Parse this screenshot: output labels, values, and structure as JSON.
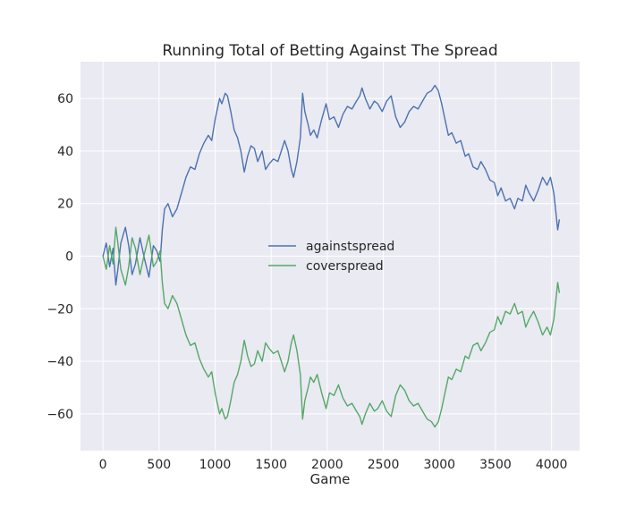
{
  "chart_data": {
    "type": "line",
    "title": "Running Total of Betting Against The Spread",
    "xlabel": "Game",
    "ylabel": "",
    "xlim": [
      -200,
      4250
    ],
    "ylim": [
      -74,
      74
    ],
    "x_ticks": [
      0,
      500,
      1000,
      1500,
      2000,
      2500,
      3000,
      3500,
      4000
    ],
    "y_ticks": [
      -60,
      -40,
      -20,
      0,
      20,
      40,
      60
    ],
    "grid": true,
    "legend_position": "center",
    "series": [
      {
        "name": "againstspread",
        "color": "#4c72b0",
        "points": [
          [
            0,
            0
          ],
          [
            30,
            5
          ],
          [
            60,
            -4
          ],
          [
            90,
            3
          ],
          [
            115,
            -11
          ],
          [
            130,
            -6
          ],
          [
            160,
            5
          ],
          [
            200,
            11
          ],
          [
            230,
            4
          ],
          [
            260,
            -7
          ],
          [
            290,
            -3
          ],
          [
            330,
            7
          ],
          [
            370,
            -1
          ],
          [
            410,
            -8
          ],
          [
            450,
            4
          ],
          [
            480,
            2
          ],
          [
            510,
            -2
          ],
          [
            530,
            10
          ],
          [
            550,
            18
          ],
          [
            580,
            20
          ],
          [
            620,
            15
          ],
          [
            660,
            18
          ],
          [
            700,
            24
          ],
          [
            740,
            30
          ],
          [
            780,
            34
          ],
          [
            820,
            33
          ],
          [
            860,
            39
          ],
          [
            900,
            43
          ],
          [
            940,
            46
          ],
          [
            970,
            44
          ],
          [
            1000,
            52
          ],
          [
            1020,
            56
          ],
          [
            1040,
            60
          ],
          [
            1060,
            58
          ],
          [
            1090,
            62
          ],
          [
            1110,
            61
          ],
          [
            1140,
            55
          ],
          [
            1170,
            48
          ],
          [
            1200,
            45
          ],
          [
            1230,
            40
          ],
          [
            1260,
            32
          ],
          [
            1290,
            38
          ],
          [
            1320,
            42
          ],
          [
            1350,
            41
          ],
          [
            1380,
            36
          ],
          [
            1420,
            40
          ],
          [
            1450,
            33
          ],
          [
            1480,
            35
          ],
          [
            1520,
            37
          ],
          [
            1560,
            36
          ],
          [
            1590,
            40
          ],
          [
            1620,
            44
          ],
          [
            1650,
            40
          ],
          [
            1680,
            33
          ],
          [
            1700,
            30
          ],
          [
            1730,
            36
          ],
          [
            1760,
            45
          ],
          [
            1780,
            62
          ],
          [
            1800,
            55
          ],
          [
            1830,
            50
          ],
          [
            1850,
            46
          ],
          [
            1880,
            48
          ],
          [
            1910,
            45
          ],
          [
            1950,
            52
          ],
          [
            1990,
            58
          ],
          [
            2020,
            52
          ],
          [
            2060,
            53
          ],
          [
            2100,
            49
          ],
          [
            2140,
            54
          ],
          [
            2180,
            57
          ],
          [
            2220,
            56
          ],
          [
            2260,
            59
          ],
          [
            2290,
            61
          ],
          [
            2310,
            64
          ],
          [
            2340,
            60
          ],
          [
            2380,
            56
          ],
          [
            2420,
            59
          ],
          [
            2450,
            58
          ],
          [
            2490,
            55
          ],
          [
            2530,
            59
          ],
          [
            2570,
            61
          ],
          [
            2610,
            53
          ],
          [
            2650,
            49
          ],
          [
            2690,
            51
          ],
          [
            2730,
            55
          ],
          [
            2770,
            57
          ],
          [
            2810,
            56
          ],
          [
            2850,
            59
          ],
          [
            2890,
            62
          ],
          [
            2930,
            63
          ],
          [
            2960,
            65
          ],
          [
            2990,
            63
          ],
          [
            3020,
            58
          ],
          [
            3050,
            52
          ],
          [
            3080,
            46
          ],
          [
            3110,
            47
          ],
          [
            3150,
            43
          ],
          [
            3190,
            44
          ],
          [
            3230,
            38
          ],
          [
            3260,
            39
          ],
          [
            3300,
            34
          ],
          [
            3340,
            33
          ],
          [
            3370,
            36
          ],
          [
            3410,
            33
          ],
          [
            3450,
            29
          ],
          [
            3490,
            28
          ],
          [
            3520,
            23
          ],
          [
            3550,
            26
          ],
          [
            3590,
            21
          ],
          [
            3630,
            22
          ],
          [
            3670,
            18
          ],
          [
            3700,
            22
          ],
          [
            3740,
            21
          ],
          [
            3770,
            27
          ],
          [
            3800,
            24
          ],
          [
            3840,
            21
          ],
          [
            3880,
            25
          ],
          [
            3920,
            30
          ],
          [
            3960,
            27
          ],
          [
            3990,
            30
          ],
          [
            4020,
            24
          ],
          [
            4040,
            16
          ],
          [
            4055,
            10
          ],
          [
            4070,
            14
          ]
        ]
      },
      {
        "name": "coverspread",
        "color": "#55a868",
        "points": [
          [
            0,
            0
          ],
          [
            30,
            -5
          ],
          [
            60,
            4
          ],
          [
            90,
            -3
          ],
          [
            115,
            11
          ],
          [
            130,
            6
          ],
          [
            160,
            -5
          ],
          [
            200,
            -11
          ],
          [
            230,
            -4
          ],
          [
            260,
            7
          ],
          [
            290,
            3
          ],
          [
            330,
            -7
          ],
          [
            370,
            1
          ],
          [
            410,
            8
          ],
          [
            450,
            -4
          ],
          [
            480,
            -2
          ],
          [
            510,
            2
          ],
          [
            530,
            -10
          ],
          [
            550,
            -18
          ],
          [
            580,
            -20
          ],
          [
            620,
            -15
          ],
          [
            660,
            -18
          ],
          [
            700,
            -24
          ],
          [
            740,
            -30
          ],
          [
            780,
            -34
          ],
          [
            820,
            -33
          ],
          [
            860,
            -39
          ],
          [
            900,
            -43
          ],
          [
            940,
            -46
          ],
          [
            970,
            -44
          ],
          [
            1000,
            -52
          ],
          [
            1020,
            -56
          ],
          [
            1040,
            -60
          ],
          [
            1060,
            -58
          ],
          [
            1090,
            -62
          ],
          [
            1110,
            -61
          ],
          [
            1140,
            -55
          ],
          [
            1170,
            -48
          ],
          [
            1200,
            -45
          ],
          [
            1230,
            -40
          ],
          [
            1260,
            -32
          ],
          [
            1290,
            -38
          ],
          [
            1320,
            -42
          ],
          [
            1350,
            -41
          ],
          [
            1380,
            -36
          ],
          [
            1420,
            -40
          ],
          [
            1450,
            -33
          ],
          [
            1480,
            -35
          ],
          [
            1520,
            -37
          ],
          [
            1560,
            -36
          ],
          [
            1590,
            -40
          ],
          [
            1620,
            -44
          ],
          [
            1650,
            -40
          ],
          [
            1680,
            -33
          ],
          [
            1700,
            -30
          ],
          [
            1730,
            -36
          ],
          [
            1760,
            -45
          ],
          [
            1780,
            -62
          ],
          [
            1800,
            -55
          ],
          [
            1830,
            -50
          ],
          [
            1850,
            -46
          ],
          [
            1880,
            -48
          ],
          [
            1910,
            -45
          ],
          [
            1950,
            -52
          ],
          [
            1990,
            -58
          ],
          [
            2020,
            -52
          ],
          [
            2060,
            -53
          ],
          [
            2100,
            -49
          ],
          [
            2140,
            -54
          ],
          [
            2180,
            -57
          ],
          [
            2220,
            -56
          ],
          [
            2260,
            -59
          ],
          [
            2290,
            -61
          ],
          [
            2310,
            -64
          ],
          [
            2340,
            -60
          ],
          [
            2380,
            -56
          ],
          [
            2420,
            -59
          ],
          [
            2450,
            -58
          ],
          [
            2490,
            -55
          ],
          [
            2530,
            -59
          ],
          [
            2570,
            -61
          ],
          [
            2610,
            -53
          ],
          [
            2650,
            -49
          ],
          [
            2690,
            -51
          ],
          [
            2730,
            -55
          ],
          [
            2770,
            -57
          ],
          [
            2810,
            -56
          ],
          [
            2850,
            -59
          ],
          [
            2890,
            -62
          ],
          [
            2930,
            -63
          ],
          [
            2960,
            -65
          ],
          [
            2990,
            -63
          ],
          [
            3020,
            -58
          ],
          [
            3050,
            -52
          ],
          [
            3080,
            -46
          ],
          [
            3110,
            -47
          ],
          [
            3150,
            -43
          ],
          [
            3190,
            -44
          ],
          [
            3230,
            -38
          ],
          [
            3260,
            -39
          ],
          [
            3300,
            -34
          ],
          [
            3340,
            -33
          ],
          [
            3370,
            -36
          ],
          [
            3410,
            -33
          ],
          [
            3450,
            -29
          ],
          [
            3490,
            -28
          ],
          [
            3520,
            -23
          ],
          [
            3550,
            -26
          ],
          [
            3590,
            -21
          ],
          [
            3630,
            -22
          ],
          [
            3670,
            -18
          ],
          [
            3700,
            -22
          ],
          [
            3740,
            -21
          ],
          [
            3770,
            -27
          ],
          [
            3800,
            -24
          ],
          [
            3840,
            -21
          ],
          [
            3880,
            -25
          ],
          [
            3920,
            -30
          ],
          [
            3960,
            -27
          ],
          [
            3990,
            -30
          ],
          [
            4020,
            -24
          ],
          [
            4040,
            -16
          ],
          [
            4055,
            -10
          ],
          [
            4070,
            -14
          ]
        ]
      }
    ]
  },
  "style": {
    "plot_background": "#eaeaf2",
    "grid_color": "#ffffff",
    "text_color": "#262626"
  }
}
